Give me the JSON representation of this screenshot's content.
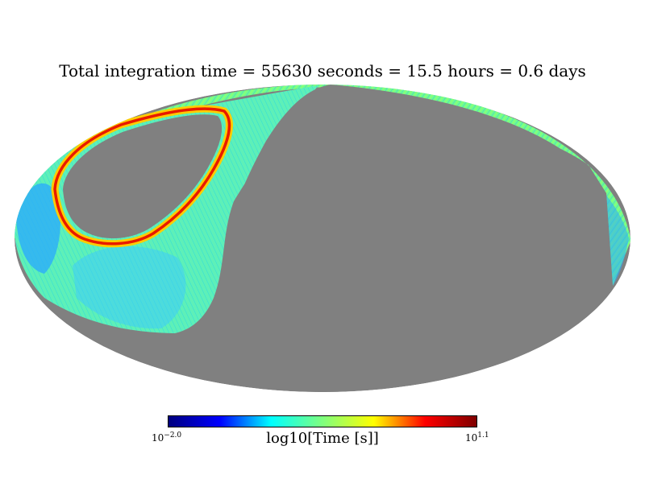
{
  "figure": {
    "title": "Total integration time = 55630 seconds = 15.5 hours = 0.6 days",
    "projection": "mollweide",
    "background_color": "#808080"
  },
  "colorbar": {
    "label": "log10[Time [s]]",
    "min_base": "10",
    "min_exp": "−2.0",
    "max_base": "10",
    "max_exp": "1.1",
    "colormap": "jet",
    "colors": [
      "#00007f",
      "#0000ff",
      "#00ffff",
      "#7fff7f",
      "#ffff00",
      "#ff0000",
      "#7f0000"
    ]
  }
}
